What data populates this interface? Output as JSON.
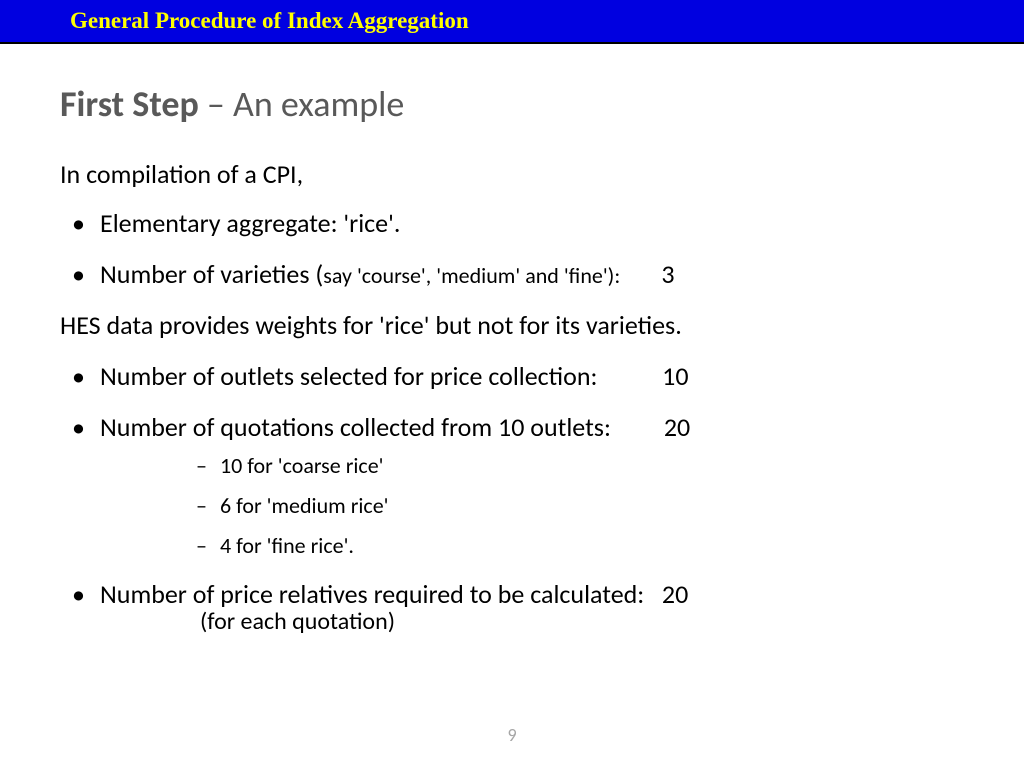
{
  "header": {
    "title": "General Procedure of Index Aggregation",
    "bg_color": "#0000e0",
    "text_color": "#ffff00",
    "border_color": "#000000"
  },
  "title": {
    "bold": "First Step",
    "separator": " – ",
    "rest": "An example",
    "color": "#595959",
    "fontsize": 36
  },
  "intro": "In compilation of a CPI,",
  "bullets": {
    "b1": "Elementary aggregate: 'rice'.",
    "b2_prefix": "Number of varieties (",
    "b2_paren": "say 'course', 'medium' and 'fine'):",
    "b2_value": "3",
    "mid_para": "HES data provides weights for 'rice' but not for its varieties.",
    "b3_label": "Number of outlets selected for price collection:",
    "b3_value": "10",
    "b4_label": "Number of quotations collected from 10 outlets:",
    "b4_value": "20",
    "sub1": "10 for 'coarse rice'",
    "sub2": "6 for 'medium rice'",
    "sub3": "4 for 'fine rice'.",
    "b5_label": "Number of price relatives required to be calculated:",
    "b5_value": "20",
    "b5_note": "(for each quotation)"
  },
  "page_number": "9",
  "style": {
    "body_fontsize": 26,
    "small_fontsize": 22,
    "text_color": "#000000",
    "pagenum_color": "#a6a6a6",
    "background": "#ffffff"
  }
}
